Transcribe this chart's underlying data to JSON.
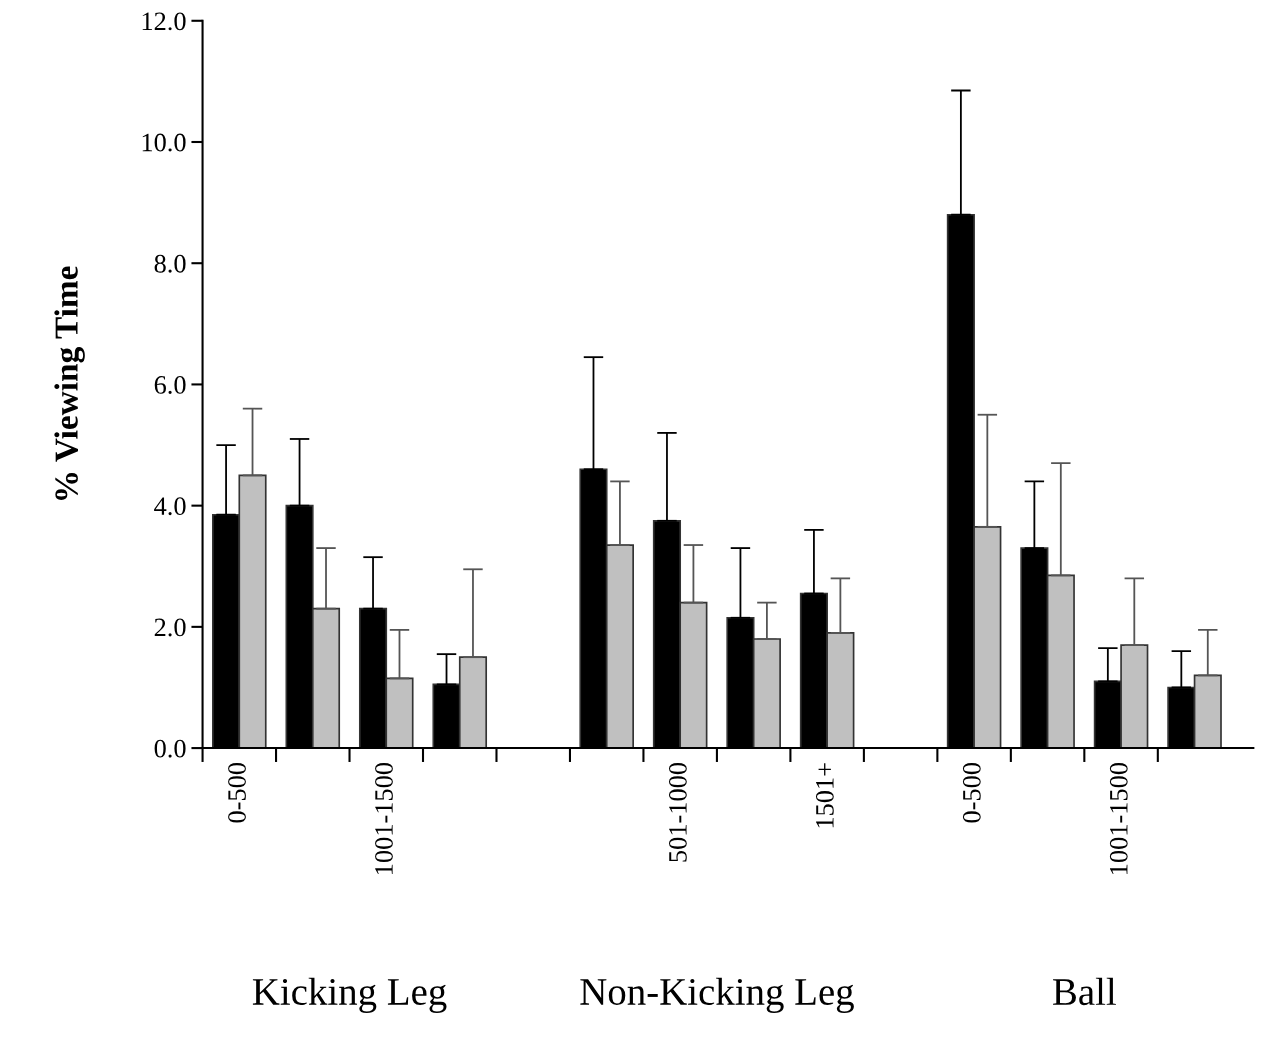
{
  "chart_data": {
    "type": "bar",
    "ylabel": "% Viewing Time",
    "categories": [
      "0-500",
      null,
      "1001-1500",
      null,
      null,
      null,
      "501-1000",
      null,
      "1501+",
      null,
      "0-500",
      null,
      "1001-1500",
      null
    ],
    "series": [
      {
        "color": "#000000",
        "values": [
          3.85,
          4.0,
          2.3,
          1.05,
          null,
          4.6,
          3.75,
          2.15,
          2.55,
          null,
          8.8,
          3.3,
          1.1,
          1.0
        ],
        "errors": [
          [
            3.85,
            5.0
          ],
          [
            4.0,
            5.1
          ],
          [
            2.3,
            3.15
          ],
          [
            1.05,
            1.55
          ],
          null,
          [
            4.6,
            6.45
          ],
          [
            3.75,
            5.2
          ],
          [
            2.15,
            3.3
          ],
          [
            2.55,
            3.6
          ],
          null,
          [
            8.8,
            10.85
          ],
          [
            3.3,
            4.4
          ],
          [
            1.1,
            1.65
          ],
          [
            1.0,
            1.6
          ]
        ]
      },
      {
        "color": "#c0c0c0",
        "values": [
          4.5,
          2.3,
          1.15,
          1.5,
          null,
          3.35,
          2.4,
          1.8,
          1.9,
          null,
          3.65,
          2.85,
          1.7,
          1.2
        ],
        "errors": [
          [
            4.5,
            5.6
          ],
          [
            2.3,
            3.3
          ],
          [
            1.15,
            1.95
          ],
          [
            1.5,
            2.95
          ],
          null,
          [
            3.35,
            4.4
          ],
          [
            2.4,
            3.35
          ],
          [
            1.8,
            2.4
          ],
          [
            1.9,
            2.8
          ],
          null,
          [
            3.65,
            5.5
          ],
          [
            2.85,
            4.7
          ],
          [
            1.7,
            2.8
          ],
          [
            1.2,
            1.95
          ]
        ]
      }
    ],
    "ylim": [
      0,
      12
    ],
    "yticks": [
      {
        "value": 0,
        "label": "0.0"
      },
      {
        "value": 2,
        "label": "2.0"
      },
      {
        "value": 4,
        "label": "4.0"
      },
      {
        "value": 6,
        "label": "6.0"
      },
      {
        "value": 8,
        "label": "8.0"
      },
      {
        "value": 10,
        "label": "10.0"
      },
      {
        "value": 12,
        "label": "12.0"
      }
    ],
    "annotations": [
      "Kicking Leg",
      "Non-Kicking Leg",
      "Ball"
    ],
    "grid": false,
    "legend": false
  }
}
